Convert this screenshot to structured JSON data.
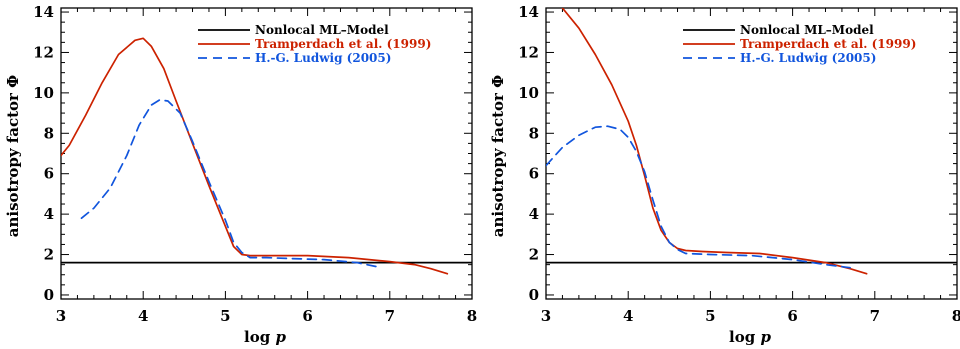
{
  "chart_data": [
    {
      "type": "line",
      "xlabel": "log p",
      "xlabel_main": "log ",
      "xlabel_var": "p",
      "ylabel": "anisotropy factor Φ",
      "xlim": [
        3,
        8
      ],
      "ylim": [
        -0.2,
        14.2
      ],
      "xticks": [
        3,
        4,
        5,
        6,
        7,
        8
      ],
      "yticks": [
        0,
        2,
        4,
        6,
        8,
        10,
        12,
        14
      ],
      "legend_position": "top-right",
      "series": [
        {
          "name": "Nonlocal ML–Model",
          "color": "#000000",
          "dash": "solid",
          "x": [
            3,
            8
          ],
          "y": [
            1.6,
            1.6
          ]
        },
        {
          "name": "Tramperdach et al. (1999)",
          "color": "#cc2200",
          "dash": "solid",
          "x": [
            3.0,
            3.1,
            3.3,
            3.5,
            3.7,
            3.9,
            4.0,
            4.1,
            4.25,
            4.4,
            4.6,
            4.8,
            5.0,
            5.1,
            5.2,
            5.3,
            5.5,
            6.0,
            6.5,
            7.0,
            7.3,
            7.5,
            7.7
          ],
          "y": [
            6.9,
            7.4,
            8.9,
            10.5,
            11.9,
            12.6,
            12.7,
            12.3,
            11.2,
            9.6,
            7.5,
            5.4,
            3.4,
            2.4,
            2.0,
            1.95,
            1.95,
            1.95,
            1.85,
            1.65,
            1.5,
            1.3,
            1.05
          ]
        },
        {
          "name": "H.-G. Ludwig (2005)",
          "color": "#1155dd",
          "dash": "dashed",
          "x": [
            3.25,
            3.4,
            3.6,
            3.8,
            3.95,
            4.1,
            4.2,
            4.3,
            4.45,
            4.6,
            4.8,
            5.0,
            5.1,
            5.2,
            5.3,
            5.5,
            5.8,
            6.2,
            6.6,
            6.9
          ],
          "y": [
            3.8,
            4.3,
            5.3,
            6.9,
            8.4,
            9.4,
            9.65,
            9.6,
            9.0,
            7.6,
            5.6,
            3.7,
            2.6,
            2.1,
            1.85,
            1.85,
            1.8,
            1.75,
            1.6,
            1.35
          ]
        }
      ]
    },
    {
      "type": "line",
      "xlabel": "log p",
      "xlabel_main": "log ",
      "xlabel_var": "p",
      "ylabel": "anisotropy factor Φ",
      "xlim": [
        3,
        8
      ],
      "ylim": [
        -0.2,
        14.2
      ],
      "xticks": [
        3,
        4,
        5,
        6,
        7,
        8
      ],
      "yticks": [
        0,
        2,
        4,
        6,
        8,
        10,
        12,
        14
      ],
      "legend_position": "top-right",
      "series": [
        {
          "name": "Nonlocal ML–Model",
          "color": "#000000",
          "dash": "solid",
          "x": [
            3,
            8
          ],
          "y": [
            1.6,
            1.6
          ]
        },
        {
          "name": "Tramperdach et al. (1999)",
          "color": "#cc2200",
          "dash": "solid",
          "x": [
            3.2,
            3.4,
            3.6,
            3.8,
            4.0,
            4.1,
            4.2,
            4.3,
            4.4,
            4.5,
            4.6,
            4.7,
            4.9,
            5.2,
            5.6,
            6.0,
            6.4,
            6.7,
            6.9
          ],
          "y": [
            14.2,
            13.2,
            11.9,
            10.4,
            8.6,
            7.4,
            5.9,
            4.3,
            3.2,
            2.6,
            2.3,
            2.2,
            2.15,
            2.1,
            2.05,
            1.85,
            1.6,
            1.3,
            1.05
          ]
        },
        {
          "name": "H.-G. Ludwig (2005)",
          "color": "#1155dd",
          "dash": "dashed",
          "x": [
            3.0,
            3.2,
            3.4,
            3.6,
            3.75,
            3.9,
            4.0,
            4.1,
            4.2,
            4.3,
            4.4,
            4.5,
            4.6,
            4.7,
            5.0,
            5.5,
            6.0,
            6.4,
            6.7
          ],
          "y": [
            6.4,
            7.3,
            7.9,
            8.3,
            8.35,
            8.2,
            7.8,
            7.1,
            6.1,
            4.7,
            3.4,
            2.6,
            2.25,
            2.05,
            2.0,
            1.95,
            1.75,
            1.5,
            1.35
          ]
        }
      ]
    }
  ]
}
